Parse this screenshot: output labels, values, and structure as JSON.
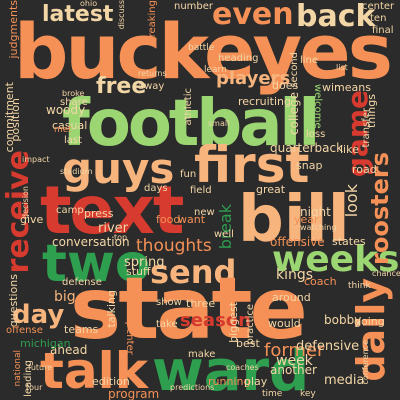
{
  "palette": {
    "background": "#2b2b2b",
    "orange": "#f59156",
    "light_green": "#9bd672",
    "green": "#2e9e4f",
    "red": "#d73b2f",
    "salmon": "#f7b47d",
    "pale": "#f3d6a6"
  },
  "words": {
    "buckeyes": "buckeyes",
    "football": "football",
    "text": "text",
    "bill": "bill",
    "state": "state",
    "ward": "ward",
    "talk": "talk",
    "first": "first",
    "guys": "guys",
    "two": "two",
    "weeks": "weeks",
    "send": "send",
    "daily": "daily",
    "receive": "receive",
    "roosters": "roosters",
    "even": "even",
    "back": "back",
    "latest": "latest",
    "game": "game",
    "free": "free",
    "players": "players",
    "recruiting": "recruiting",
    "thoughts": "thoughts",
    "season": "season",
    "day": "day",
    "big": "big",
    "former": "former",
    "week": "week",
    "defensive": "defensive",
    "offensive": "offensive",
    "kings": "kings",
    "spring": "spring",
    "conversation": "conversation",
    "look": "look",
    "break": "break",
    "quarterback": "quarterback",
    "college": "college",
    "woody": "woody",
    "river": "river",
    "food": "food",
    "want": "want",
    "night": "night",
    "states": "states",
    "coach": "coach",
    "like": "like",
    "win": "win",
    "welcome": "welcome",
    "means": "means",
    "things": "things",
    "snap": "snap",
    "great": "great",
    "edition": "edition",
    "program": "program",
    "media": "media",
    "another": "another",
    "ahead": "ahead",
    "michigan": "michigan",
    "teams": "teams",
    "questions": "questions",
    "commitment": "commitment",
    "position": "position",
    "casual": "casual",
    "judgments": "judgments",
    "offense": "offense",
    "defense": "defense",
    "stuff": "stuff",
    "talking": "talking",
    "running": "running",
    "play": "play",
    "would": "would",
    "going": "going",
    "bobby": "bobby",
    "around": "around",
    "biggest": "biggest",
    "best": "best",
    "show": "show",
    "take": "take",
    "three": "three",
    "road": "road",
    "year": "year",
    "field": "field",
    "days": "days",
    "press": "press",
    "give": "give",
    "camp": "camp",
    "new": "new",
    "well": "well",
    "share": "share",
    "does": "does",
    "heading": "heading",
    "away": "away",
    "athletic": "athletic",
    "breaking": "breaking",
    "center": "center",
    "ten": "ten",
    "final": "final",
    "line": "line",
    "second": "second",
    "carpenter": "carpenter",
    "leading": "leading",
    "practice": "practice",
    "make": "make",
    "last": "last",
    "number": "number",
    "transfer": "transfer",
    "fun": "fun",
    "learn": "learn",
    "battle": "battle",
    "loss": "loss",
    "think": "think",
    "chance": "chance",
    "key": "key",
    "time": "time",
    "national": "national",
    "coaches": "coaches",
    "predictions": "predictions",
    "conference": "conference",
    "tour": "tour",
    "impact": "impact",
    "stadium": "stadium",
    "broke": "broke",
    "top": "top",
    "future": "future",
    "returns": "returns",
    "met": "met",
    "small": "small",
    "discuss": "discuss",
    "decision": "decision",
    "watching": "watching",
    "ohio": "ohio",
    "list": "list"
  }
}
